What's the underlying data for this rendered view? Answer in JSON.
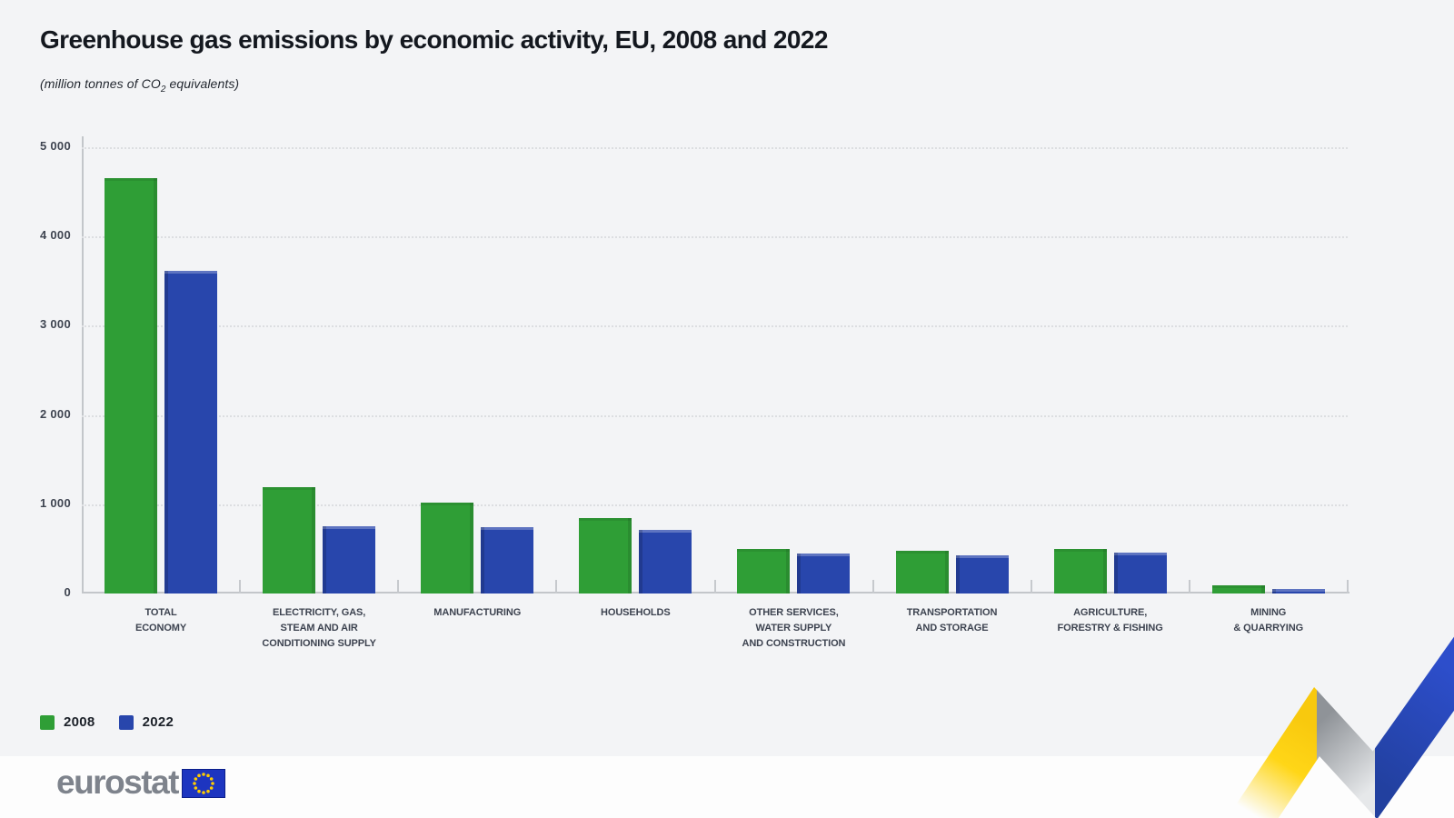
{
  "title": "Greenhouse gas emissions by economic activity, EU, 2008 and 2022",
  "subtitle": {
    "prefix": "(million tonnes of CO",
    "subscript": "2",
    "suffix": " equivalents)"
  },
  "chart_data": {
    "type": "bar",
    "title": "Greenhouse gas emissions by economic activity, EU, 2008 and 2022",
    "unit_label": "(million tonnes of CO2 equivalents)",
    "categories": [
      "Total economy",
      "Electricity, gas, steam and air conditioning supply",
      "Manufacturing",
      "Households",
      "Other services, water supply and construction",
      "Transportation and storage",
      "Agriculture, forestry & fishing",
      "Mining & quarrying"
    ],
    "category_lines": [
      [
        "TOTAL",
        "ECONOMY"
      ],
      [
        "ELECTRICITY, GAS,",
        "STEAM AND AIR",
        "CONDITIONING SUPPLY"
      ],
      [
        "MANUFACTURING"
      ],
      [
        "HOUSEHOLDS"
      ],
      [
        "OTHER SERVICES,",
        "WATER SUPPLY",
        "AND CONSTRUCTION"
      ],
      [
        "TRANSPORTATION",
        "AND STORAGE"
      ],
      [
        "AGRICULTURE,",
        "FORESTRY & FISHING"
      ],
      [
        "MINING",
        "& QUARRYING"
      ]
    ],
    "series": [
      {
        "name": "2008",
        "color": "#2f9e36",
        "values": [
          4650,
          1190,
          1020,
          850,
          500,
          480,
          500,
          95
        ]
      },
      {
        "name": "2022",
        "color": "#2846ac",
        "values": [
          3620,
          750,
          740,
          710,
          450,
          430,
          460,
          50
        ]
      }
    ],
    "ylim": [
      0,
      5000
    ],
    "yticks": [
      {
        "label": "5 000",
        "value": 5000
      },
      {
        "label": "4 000",
        "value": 4000
      },
      {
        "label": "3 000",
        "value": 3000
      },
      {
        "label": "2 000",
        "value": 2000
      },
      {
        "label": "1 000",
        "value": 1000
      },
      {
        "label": "0",
        "value": 0
      }
    ],
    "grid": "horizontal-dotted",
    "legend_position": "bottom-left"
  },
  "legend": {
    "items": [
      {
        "label": "2008",
        "color": "#2f9e36"
      },
      {
        "label": "2022",
        "color": "#2846ac"
      }
    ]
  },
  "footer": {
    "logo_text": "eurostat"
  },
  "colors": {
    "background": "#f3f4f6",
    "bar_2008": "#2f9e36",
    "bar_2022": "#2846ac",
    "axis": "#c3c6ca",
    "decor_yellow": "#ffd617",
    "decor_gray": "#9b9fa4",
    "decor_blue": "#2b49c4"
  }
}
